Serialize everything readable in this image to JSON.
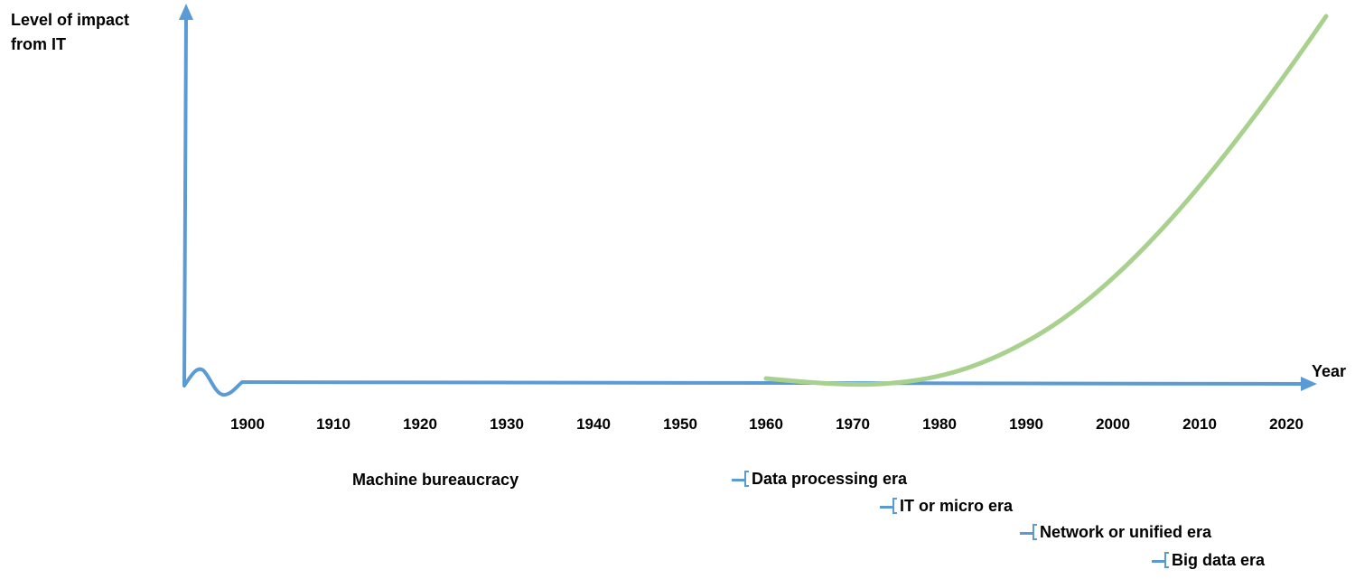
{
  "diagram": {
    "y_axis_label": "Level of impact from IT",
    "x_axis_label": "Year",
    "x_ticks": [
      "1900",
      "1910",
      "1920",
      "1930",
      "1940",
      "1950",
      "1960",
      "1970",
      "1980",
      "1990",
      "2000",
      "2010",
      "2020"
    ],
    "eras": [
      {
        "label": "Machine bureaucracy",
        "marker": false
      },
      {
        "label": "Data processing era",
        "marker": true
      },
      {
        "label": "IT or micro era",
        "marker": true
      },
      {
        "label": "Network or unified era",
        "marker": true
      },
      {
        "label": "Big data era",
        "marker": true
      }
    ],
    "colors": {
      "axis": "#5b9bd5",
      "curve": "#a9d18e",
      "text": "#000000"
    }
  }
}
